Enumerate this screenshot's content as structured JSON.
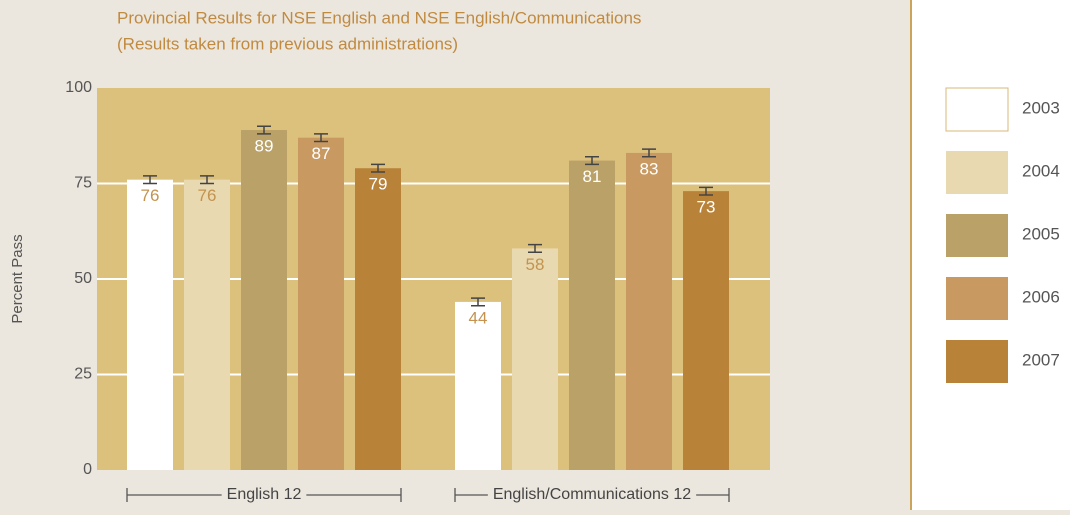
{
  "chart_data": {
    "type": "bar",
    "title": "Provincial Results for NSE English and NSE English/Communications",
    "subtitle": "(Results taken from previous administrations)",
    "y_label": "Percent Pass",
    "categories": [
      "English 12",
      "English/Communications 12"
    ],
    "series": [
      {
        "name": "2003",
        "color": "#ffffff",
        "values": [
          76,
          44
        ],
        "errors": [
          1,
          1
        ]
      },
      {
        "name": "2004",
        "color": "#e9d9b1",
        "values": [
          76,
          58
        ],
        "errors": [
          1,
          1
        ]
      },
      {
        "name": "2005",
        "color": "#b9a168",
        "values": [
          89,
          81
        ],
        "errors": [
          1,
          1
        ]
      },
      {
        "name": "2006",
        "color": "#c89a62",
        "values": [
          87,
          83
        ],
        "errors": [
          1,
          1
        ]
      },
      {
        "name": "2007",
        "color": "#b98239",
        "values": [
          79,
          73
        ],
        "errors": [
          1,
          1
        ]
      }
    ],
    "ylim": [
      0,
      100
    ],
    "yticks": [
      0,
      25,
      50,
      75,
      100
    ],
    "grid": true,
    "legend": "right"
  }
}
